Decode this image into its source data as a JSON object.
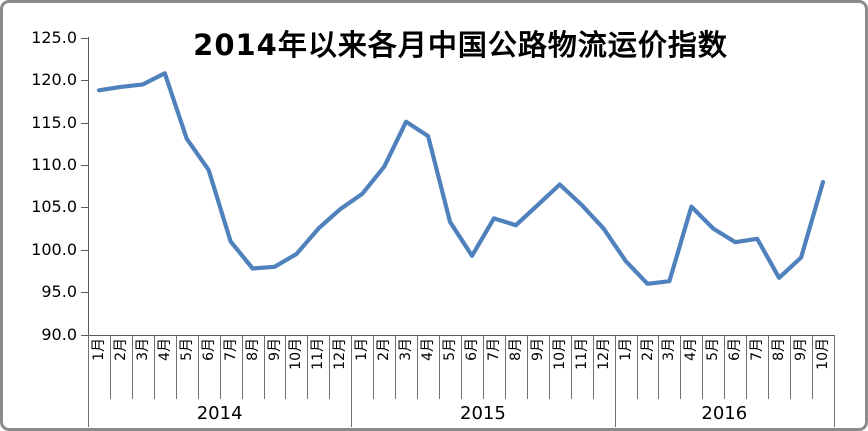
{
  "chart_data": {
    "type": "line",
    "title": "2014年以来各月中国公路物流运价指数",
    "categories": [
      "1月",
      "2月",
      "3月",
      "4月",
      "5月",
      "6月",
      "7月",
      "8月",
      "9月",
      "10月",
      "11月",
      "12月",
      "1月",
      "2月",
      "3月",
      "4月",
      "5月",
      "6月",
      "7月",
      "8月",
      "9月",
      "10月",
      "11月",
      "12月",
      "1月",
      "2月",
      "3月",
      "4月",
      "5月",
      "6月",
      "7月",
      "8月",
      "9月",
      "10月"
    ],
    "year_groups": [
      {
        "label": "2014",
        "count": 12
      },
      {
        "label": "2015",
        "count": 12
      },
      {
        "label": "2016",
        "count": 10
      }
    ],
    "series": [
      {
        "values": [
          118.8,
          119.2,
          119.5,
          120.8,
          113.1,
          109.4,
          101.0,
          97.8,
          98.0,
          99.5,
          102.5,
          104.8,
          106.6,
          109.8,
          115.1,
          113.4,
          103.3,
          99.3,
          103.7,
          102.9,
          105.3,
          107.7,
          105.3,
          102.5,
          98.7,
          96.0,
          96.3,
          105.1,
          102.5,
          100.9,
          101.3,
          96.7,
          99.1,
          108.0
        ]
      }
    ],
    "ylim": [
      90,
      125
    ],
    "ytick_interval": 5,
    "ytick_labels": [
      "125.0",
      "120.0",
      "115.0",
      "110.0",
      "105.0",
      "100.0",
      "95.0",
      "90.0"
    ],
    "xlabel_rotation_deg": -90,
    "grid": false,
    "legend": "none",
    "colors": {
      "line": "#4F81BD",
      "axis": "#595959",
      "text": "#000000",
      "border": "#8C8C8C"
    }
  }
}
